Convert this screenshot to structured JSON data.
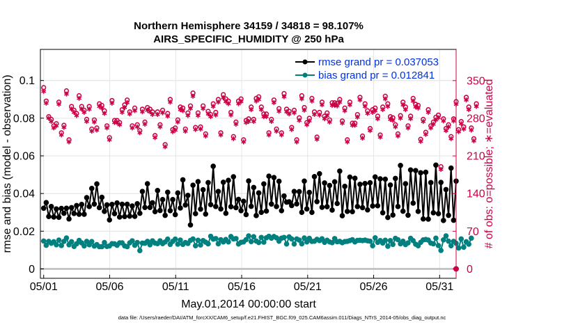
{
  "colors": {
    "rmse": "#000000",
    "bias": "#00807f",
    "obs": "#cc0044",
    "legend_text": "#0033dd",
    "zero_line": "#bbbbbb",
    "grid": "#e6e6e6"
  },
  "chart_data": {
    "type": "line",
    "title_line1": "Northern Hemisphere 34159 / 34818 = 98.107%",
    "title_line2": "AIRS_SPECIFIC_HUMIDITY @ 250 hPa",
    "xlabel": "May.01,2014 00:00:00 start",
    "ylabel_left": "rmse and bias (model - observation)",
    "ylabel_right": "# of obs: o=possible; ∗=evaluated",
    "footnote": "data file: /Users/raeder/DAI/ATM_forcXX/CAM6_setup/f.e21.FHIST_BGC.f09_025.CAM6assim.011/Diags_NTrS_2014-05/obs_diag_output.nc",
    "xlim": [
      0.75,
      32.25
    ],
    "ylim_left": [
      -0.005,
      0.1165
    ],
    "ylim_right": [
      -17.5,
      408
    ],
    "x_ticks": [
      1,
      6,
      11,
      16,
      21,
      26,
      31
    ],
    "x_tick_labels": [
      "05/01",
      "05/06",
      "05/11",
      "05/16",
      "05/21",
      "05/26",
      "05/31"
    ],
    "y_left_ticks": [
      0,
      0.02,
      0.04,
      0.06,
      0.08,
      0.1
    ],
    "y_left_tick_labels": [
      "0",
      "0.02",
      "0.04",
      "0.06",
      "0.08",
      "0.1"
    ],
    "y_right_ticks": [
      0,
      70,
      140,
      210,
      280,
      350
    ],
    "y_right_tick_labels": [
      "0",
      "70",
      "140",
      "210",
      "280",
      "350"
    ],
    "legend": {
      "position": "top-right",
      "entries": [
        "rmse grand pr = 0.037053",
        "bias grand pr = 0.012841"
      ]
    },
    "series": [
      {
        "name": "rmse",
        "axis": "left",
        "values": [
          0.0322,
          0.0352,
          0.0278,
          0.0331,
          0.0275,
          0.0318,
          0.0274,
          0.0321,
          0.0295,
          0.0322,
          0.0265,
          0.0325,
          0.0294,
          0.0336,
          0.029,
          0.0342,
          0.029,
          0.0378,
          0.0331,
          0.0427,
          0.0344,
          0.0451,
          0.0325,
          0.038,
          0.0305,
          0.034,
          0.026,
          0.0342,
          0.0293,
          0.035,
          0.0275,
          0.0343,
          0.0278,
          0.0343,
          0.028,
          0.0334,
          0.0279,
          0.0346,
          0.0295,
          0.0411,
          0.0326,
          0.0452,
          0.0326,
          0.0351,
          0.0304,
          0.0416,
          0.031,
          0.0368,
          0.0284,
          0.0407,
          0.0309,
          0.0368,
          0.0288,
          0.0403,
          0.0323,
          0.0473,
          0.0339,
          0.039,
          0.0233,
          0.0444,
          0.0293,
          0.0463,
          0.0317,
          0.042,
          0.0291,
          0.0458,
          0.0341,
          0.0545,
          0.0331,
          0.0411,
          0.0318,
          0.046,
          0.0295,
          0.047,
          0.033,
          0.0489,
          0.0325,
          0.0369,
          0.0309,
          0.0359,
          0.0288,
          0.0467,
          0.0332,
          0.0432,
          0.0283,
          0.0403,
          0.03,
          0.0451,
          0.0307,
          0.0492,
          0.0344,
          0.0485,
          0.0331,
          0.0465,
          0.0309,
          0.0387,
          0.0354,
          0.0356,
          0.0336,
          0.0411,
          0.0345,
          0.041,
          0.03,
          0.0466,
          0.0318,
          0.0406,
          0.03,
          0.049,
          0.0357,
          0.0505,
          0.0327,
          0.0456,
          0.033,
          0.0443,
          0.0312,
          0.0462,
          0.0347,
          0.0519,
          0.0282,
          0.0438,
          0.0305,
          0.0487,
          0.0304,
          0.0481,
          0.0331,
          0.0449,
          0.0325,
          0.0453,
          0.0313,
          0.0457,
          0.0334,
          0.0488,
          0.0335,
          0.0478,
          0.0298,
          0.0476,
          0.0273,
          0.0445,
          0.0286,
          0.048,
          0.0331,
          0.0549,
          0.0306,
          0.0452,
          0.0285,
          0.0525,
          0.0349,
          0.0522,
          0.0305,
          0.051,
          0.0265,
          0.0513,
          0.0264,
          0.0458,
          0.0298,
          0.0551,
          0.0293,
          0.0459,
          0.0257,
          0.0421,
          0.0284,
          0.0535,
          0.0258,
          0.0466
        ]
      },
      {
        "name": "bias",
        "axis": "left",
        "values": [
          0.0148,
          0.0125,
          0.0146,
          0.0136,
          0.0144,
          0.0128,
          0.0153,
          0.0124,
          0.0146,
          0.0164,
          0.0128,
          0.0144,
          0.0119,
          0.0133,
          0.0151,
          0.0138,
          0.0122,
          0.0146,
          0.0128,
          0.0145,
          0.0121,
          0.0129,
          0.0118,
          0.0118,
          0.014,
          0.0119,
          0.0122,
          0.0134,
          0.0133,
          0.0125,
          0.0138,
          0.0138,
          0.0122,
          0.0118,
          0.0138,
          0.0149,
          0.0125,
          0.014,
          0.0097,
          0.0137,
          0.0136,
          0.0146,
          0.0128,
          0.0149,
          0.0137,
          0.0134,
          0.0149,
          0.0134,
          0.0143,
          0.0158,
          0.013,
          0.0146,
          0.0158,
          0.0131,
          0.0153,
          0.013,
          0.014,
          0.0135,
          0.0151,
          0.0159,
          0.0123,
          0.0152,
          0.0127,
          0.015,
          0.0142,
          0.0133,
          0.0173,
          0.0158,
          0.0161,
          0.0133,
          0.0155,
          0.0143,
          0.0156,
          0.0143,
          0.0172,
          0.0159,
          0.0161,
          0.0132,
          0.0141,
          0.0143,
          0.0155,
          0.0175,
          0.0145,
          0.0171,
          0.0148,
          0.014,
          0.0167,
          0.0142,
          0.0165,
          0.0173,
          0.0163,
          0.0172,
          0.0165,
          0.0147,
          0.0163,
          0.0167,
          0.0132,
          0.017,
          0.0159,
          0.0132,
          0.0159,
          0.0153,
          0.0133,
          0.0164,
          0.0143,
          0.0162,
          0.0146,
          0.0147,
          0.0157,
          0.015,
          0.016,
          0.0141,
          0.0152,
          0.0143,
          0.0139,
          0.0161,
          0.0144,
          0.0146,
          0.0139,
          0.0145,
          0.0146,
          0.015,
          0.0155,
          0.0143,
          0.0151,
          0.0152,
          0.015,
          0.0153,
          0.0149,
          0.0147,
          0.0123,
          0.0165,
          0.0141,
          0.015,
          0.0137,
          0.0152,
          0.012,
          0.015,
          0.013,
          0.0162,
          0.0155,
          0.0133,
          0.0147,
          0.0129,
          0.0138,
          0.0162,
          0.015,
          0.0131,
          0.0123,
          0.0141,
          0.0154,
          0.0156,
          0.0153,
          0.0137,
          0.0133,
          0.0163,
          0.0124,
          0.0098,
          0.0154,
          0.0175,
          0.0147,
          0.0123,
          0.0146,
          0.0136,
          0.0111,
          0.0159,
          0.0115,
          0.0144,
          0.0131,
          0.0163
        ]
      },
      {
        "name": "obs possible",
        "axis": "right",
        "marker": "o",
        "values": [
          337,
          312,
          283,
          278,
          266,
          270,
          310,
          253,
          267,
          331,
          240,
          302,
          295,
          289,
          322,
          302,
          295,
          278,
          302,
          260,
          277,
          262,
          307,
          304,
          294,
          266,
          244,
          313,
          276,
          276,
          272,
          296,
          305,
          314,
          292,
          266,
          299,
          268,
          257,
          297,
          273,
          300,
          297,
          292,
          248,
          292,
          268,
          295,
          231,
          289,
          315,
          259,
          262,
          277,
          301,
          299,
          260,
          290,
          303,
          327,
          263,
          290,
          264,
          303,
          251,
          293,
          287,
          307,
          291,
          315,
          253,
          324,
          316,
          312,
          291,
          246,
          273,
          312,
          316,
          240,
          276,
          279,
          301,
          278,
          317,
          320,
          301,
          288,
          288,
          253,
          278,
          314,
          260,
          298,
          253,
          326,
          297,
          293,
          263,
          295,
          240,
          281,
          322,
          300,
          272,
          280,
          317,
          292,
          245,
          291,
          310,
          284,
          290,
          277,
          309,
          309,
          308,
          315,
          275,
          299,
          240,
          310,
          271,
          271,
          287,
          319,
          247,
          307,
          294,
          261,
          296,
          299,
          284,
          249,
          301,
          321,
          307,
          283,
          281,
          268,
          251,
          285,
          310,
          301,
          266,
          284,
          317,
          306,
          304,
          241,
          278,
          254,
          296,
          266,
          273,
          282,
          286,
          190,
          279,
          261,
          268,
          246,
          279,
          311,
          259,
          274,
          264,
          319,
          301,
          262,
          242,
          307
        ]
      },
      {
        "name": "obs evaluated",
        "axis": "right",
        "marker": "*",
        "values": [
          330,
          308,
          280,
          274,
          262,
          266,
          306,
          249,
          263,
          325,
          236,
          297,
          291,
          285,
          317,
          297,
          291,
          274,
          297,
          256,
          273,
          258,
          302,
          299,
          289,
          262,
          240,
          308,
          272,
          272,
          268,
          291,
          300,
          309,
          288,
          262,
          294,
          264,
          253,
          292,
          269,
          295,
          292,
          287,
          244,
          287,
          264,
          290,
          227,
          284,
          310,
          255,
          258,
          273,
          296,
          294,
          256,
          285,
          298,
          321,
          259,
          285,
          260,
          298,
          247,
          288,
          283,
          302,
          286,
          310,
          249,
          318,
          311,
          307,
          286,
          242,
          269,
          307,
          311,
          236,
          272,
          274,
          296,
          274,
          312,
          315,
          296,
          283,
          283,
          249,
          274,
          309,
          256,
          293,
          249,
          320,
          292,
          288,
          259,
          290,
          236,
          276,
          316,
          295,
          268,
          275,
          312,
          287,
          241,
          286,
          305,
          279,
          285,
          273,
          304,
          304,
          303,
          310,
          271,
          294,
          236,
          305,
          267,
          267,
          282,
          314,
          243,
          302,
          289,
          257,
          291,
          294,
          279,
          245,
          296,
          316,
          302,
          278,
          276,
          264,
          247,
          280,
          305,
          296,
          262,
          279,
          312,
          301,
          299,
          237,
          274,
          250,
          291,
          262,
          269,
          277,
          281,
          185,
          275,
          257,
          264,
          242,
          275,
          306,
          255,
          270,
          260,
          314,
          296,
          258,
          238,
          302
        ]
      }
    ]
  }
}
